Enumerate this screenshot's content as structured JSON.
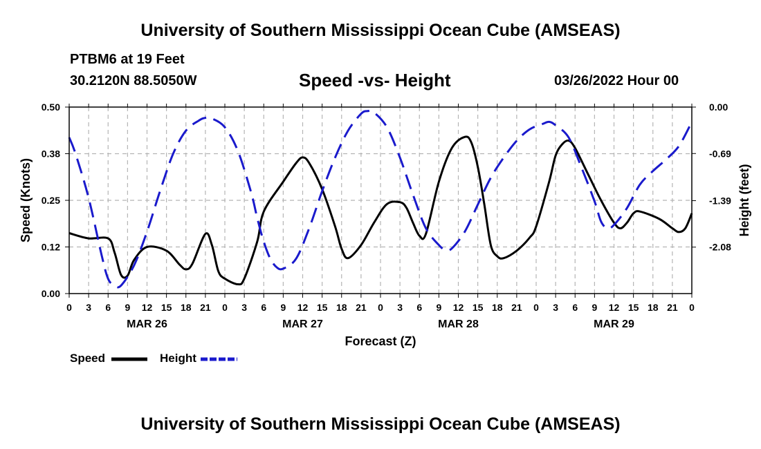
{
  "header": {
    "title": "University of Southern Mississippi Ocean Cube (AMSEAS)",
    "station": "PTBM6 at 19 Feet",
    "coords": "30.2120N  88.5050W",
    "chart_title": "Speed -vs- Height",
    "date": "03/26/2022 Hour 00"
  },
  "footer": {
    "title": "University of Southern Mississippi Ocean Cube (AMSEAS)"
  },
  "legend": {
    "speed_label": "Speed",
    "height_label": "Height"
  },
  "colors": {
    "speed": "#000000",
    "height": "#1a1acc",
    "grid": "#b4b4b4"
  },
  "chart_data": {
    "type": "line",
    "title": "Speed -vs- Height",
    "xlabel": "Forecast (Z)",
    "ylabel": "Speed (Knots)",
    "y2label": "Height (feet)",
    "xlim": [
      0,
      96
    ],
    "ylim": [
      0,
      0.5
    ],
    "y2lim": [
      -2.77,
      0
    ],
    "x_ticks": [
      0,
      3,
      6,
      9,
      12,
      15,
      18,
      21,
      24,
      27,
      30,
      33,
      36,
      39,
      42,
      45,
      48,
      51,
      54,
      57,
      60,
      63,
      66,
      69,
      72,
      75,
      78,
      81,
      84,
      87,
      90,
      93,
      96
    ],
    "x_tick_labels": [
      "0",
      "3",
      "6",
      "9",
      "12",
      "15",
      "18",
      "21",
      "0",
      "3",
      "6",
      "9",
      "12",
      "15",
      "18",
      "21",
      "0",
      "3",
      "6",
      "9",
      "12",
      "15",
      "18",
      "21",
      "0",
      "3",
      "6",
      "9",
      "12",
      "15",
      "18",
      "21",
      "0"
    ],
    "day_labels": [
      {
        "x": 12,
        "label": "MAR 26"
      },
      {
        "x": 36,
        "label": "MAR 27"
      },
      {
        "x": 60,
        "label": "MAR 28"
      },
      {
        "x": 84,
        "label": "MAR 29"
      }
    ],
    "y_ticks": [
      0,
      0.125,
      0.25,
      0.375,
      0.5
    ],
    "y_tick_labels": [
      "0.00",
      "0.12",
      "0.25",
      "0.38",
      "0.50"
    ],
    "y2_ticks": [
      0,
      -0.69,
      -1.39,
      -2.08
    ],
    "y2_tick_labels": [
      "0.00",
      "-0.69",
      "-1.39",
      "-2.08"
    ],
    "series": [
      {
        "name": "Speed",
        "axis": "left",
        "points": [
          [
            0,
            0.162
          ],
          [
            3,
            0.148
          ],
          [
            6,
            0.148
          ],
          [
            7,
            0.11
          ],
          [
            8,
            0.05
          ],
          [
            9,
            0.048
          ],
          [
            10,
            0.09
          ],
          [
            12,
            0.125
          ],
          [
            15,
            0.115
          ],
          [
            17,
            0.078
          ],
          [
            18,
            0.065
          ],
          [
            19,
            0.08
          ],
          [
            21,
            0.16
          ],
          [
            22,
            0.13
          ],
          [
            23,
            0.06
          ],
          [
            24,
            0.04
          ],
          [
            26,
            0.025
          ],
          [
            27,
            0.04
          ],
          [
            29,
            0.14
          ],
          [
            30,
            0.22
          ],
          [
            33,
            0.3
          ],
          [
            35,
            0.35
          ],
          [
            36,
            0.365
          ],
          [
            37,
            0.35
          ],
          [
            39,
            0.28
          ],
          [
            41,
            0.18
          ],
          [
            42,
            0.12
          ],
          [
            43,
            0.095
          ],
          [
            45,
            0.13
          ],
          [
            47,
            0.19
          ],
          [
            49,
            0.24
          ],
          [
            51,
            0.245
          ],
          [
            52,
            0.23
          ],
          [
            53,
            0.19
          ],
          [
            54,
            0.155
          ],
          [
            55,
            0.16
          ],
          [
            57,
            0.3
          ],
          [
            59,
            0.39
          ],
          [
            61,
            0.42
          ],
          [
            62,
            0.405
          ],
          [
            63,
            0.34
          ],
          [
            64,
            0.24
          ],
          [
            65,
            0.13
          ],
          [
            66,
            0.1
          ],
          [
            67,
            0.095
          ],
          [
            69,
            0.115
          ],
          [
            71,
            0.15
          ],
          [
            72,
            0.18
          ],
          [
            74,
            0.3
          ],
          [
            75,
            0.37
          ],
          [
            76,
            0.4
          ],
          [
            77,
            0.41
          ],
          [
            78,
            0.39
          ],
          [
            80,
            0.32
          ],
          [
            82,
            0.25
          ],
          [
            84,
            0.19
          ],
          [
            85,
            0.175
          ],
          [
            86,
            0.19
          ],
          [
            87,
            0.215
          ],
          [
            88,
            0.22
          ],
          [
            91,
            0.2
          ],
          [
            93,
            0.175
          ],
          [
            94,
            0.165
          ],
          [
            95,
            0.175
          ],
          [
            96,
            0.215
          ]
        ]
      },
      {
        "name": "Height",
        "axis": "right",
        "points": [
          [
            0,
            -0.45
          ],
          [
            1,
            -0.7
          ],
          [
            3,
            -1.35
          ],
          [
            5,
            -2.2
          ],
          [
            6,
            -2.55
          ],
          [
            7,
            -2.65
          ],
          [
            8,
            -2.65
          ],
          [
            10,
            -2.35
          ],
          [
            12,
            -1.85
          ],
          [
            14,
            -1.25
          ],
          [
            16,
            -0.7
          ],
          [
            18,
            -0.35
          ],
          [
            20,
            -0.2
          ],
          [
            21,
            -0.16
          ],
          [
            22,
            -0.17
          ],
          [
            24,
            -0.3
          ],
          [
            26,
            -0.65
          ],
          [
            28,
            -1.25
          ],
          [
            29,
            -1.65
          ],
          [
            30,
            -2.0
          ],
          [
            31,
            -2.25
          ],
          [
            32,
            -2.38
          ],
          [
            33,
            -2.4
          ],
          [
            35,
            -2.25
          ],
          [
            37,
            -1.8
          ],
          [
            39,
            -1.25
          ],
          [
            41,
            -0.75
          ],
          [
            43,
            -0.35
          ],
          [
            45,
            -0.1
          ],
          [
            46,
            -0.06
          ],
          [
            47,
            -0.08
          ],
          [
            49,
            -0.3
          ],
          [
            51,
            -0.75
          ],
          [
            53,
            -1.3
          ],
          [
            55,
            -1.8
          ],
          [
            57,
            -2.05
          ],
          [
            58,
            -2.12
          ],
          [
            59,
            -2.1
          ],
          [
            61,
            -1.85
          ],
          [
            63,
            -1.45
          ],
          [
            65,
            -1.05
          ],
          [
            67,
            -0.75
          ],
          [
            69,
            -0.5
          ],
          [
            71,
            -0.33
          ],
          [
            73,
            -0.25
          ],
          [
            74,
            -0.22
          ],
          [
            75,
            -0.27
          ],
          [
            77,
            -0.45
          ],
          [
            79,
            -0.9
          ],
          [
            81,
            -1.4
          ],
          [
            82,
            -1.7
          ],
          [
            83,
            -1.8
          ],
          [
            84,
            -1.75
          ],
          [
            86,
            -1.5
          ],
          [
            88,
            -1.15
          ],
          [
            90,
            -0.95
          ],
          [
            92,
            -0.78
          ],
          [
            94,
            -0.58
          ],
          [
            96,
            -0.22
          ]
        ]
      }
    ]
  }
}
